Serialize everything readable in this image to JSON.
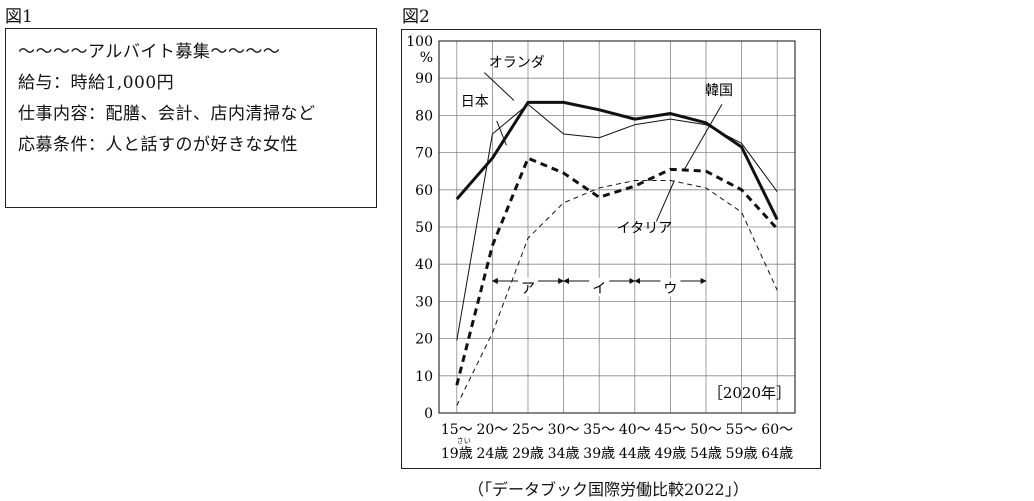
{
  "figure1": {
    "label": "図1",
    "lines": [
      "〜〜〜〜アルバイト募集〜〜〜〜",
      "給与：時給1,000円",
      "仕事内容：配膳、会計、店内清掃など",
      "応募条件：人と話すのが好きな女性"
    ]
  },
  "figure2": {
    "label": "図2",
    "source": "（「データブック国際労働比較2022」）"
  },
  "chart_data": {
    "type": "line",
    "year_label": "［2020年］",
    "y_unit": "%",
    "ylim": [
      0,
      100
    ],
    "y_ticks": [
      "0",
      "10",
      "20",
      "30",
      "40",
      "50",
      "60",
      "70",
      "80",
      "90",
      "100"
    ],
    "grid": true,
    "categories": [
      [
        "15〜",
        "19歳"
      ],
      [
        "20〜",
        "24歳"
      ],
      [
        "25〜",
        "29歳"
      ],
      [
        "30〜",
        "34歳"
      ],
      [
        "35〜",
        "39歳"
      ],
      [
        "40〜",
        "44歳"
      ],
      [
        "45〜",
        "49歳"
      ],
      [
        "50〜",
        "54歳"
      ],
      [
        "55〜",
        "59歳"
      ],
      [
        "60〜",
        "64歳"
      ]
    ],
    "ruby": "さい",
    "series": [
      {
        "name": "日本",
        "style": "thick-solid",
        "values": [
          57.5,
          68.5,
          83.5,
          83.5,
          81.5,
          79,
          80.5,
          78,
          71.5,
          52
        ]
      },
      {
        "name": "オランダ",
        "style": "thin-solid",
        "values": [
          19.5,
          75,
          83,
          75,
          74,
          77.5,
          79,
          77.5,
          72.5,
          59.5
        ]
      },
      {
        "name": "韓国",
        "style": "thick-dashed",
        "values": [
          7.5,
          45,
          68.5,
          64.5,
          58,
          61,
          65.5,
          65,
          60,
          49.5
        ]
      },
      {
        "name": "イタリア",
        "style": "thin-dashed",
        "values": [
          2,
          21.5,
          47,
          56.5,
          60.5,
          62.5,
          62.5,
          60.5,
          54,
          33
        ]
      }
    ],
    "period_labels": [
      "ア",
      "イ",
      "ウ"
    ]
  }
}
